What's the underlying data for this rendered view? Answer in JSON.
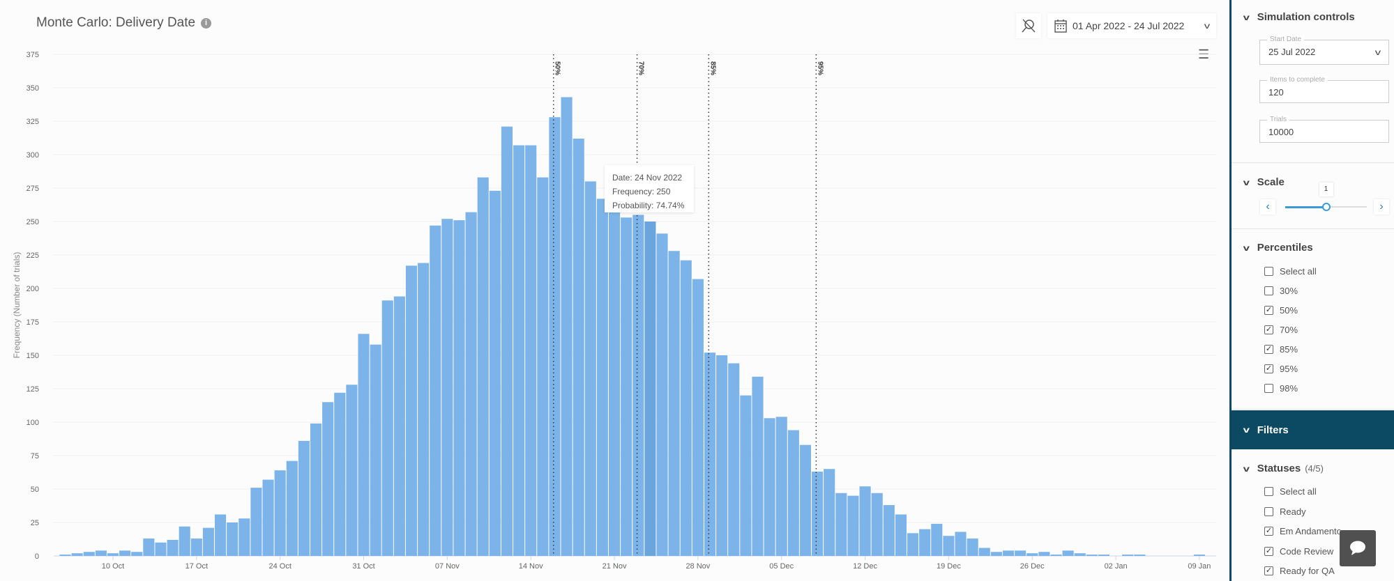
{
  "header": {
    "title": "Monte Carlo: Delivery Date",
    "info_icon": "info-icon",
    "date_range": "01 Apr 2022 - 24 Jul 2022",
    "menu_icon": "hamburger-icon"
  },
  "tooltip": {
    "date": "Date: 24 Nov 2022",
    "frequency": "Frequency: 250",
    "probability": "Probability: 74.74%"
  },
  "chart_data": {
    "type": "bar",
    "title": "Monte Carlo: Delivery Date",
    "xlabel": "",
    "ylabel": "Frequency (Number of trials)",
    "ylim": [
      0,
      375
    ],
    "yticks": [
      "0",
      "25",
      "50",
      "75",
      "100",
      "125",
      "150",
      "175",
      "200",
      "225",
      "250",
      "275",
      "300",
      "325",
      "350",
      "375"
    ],
    "start_date": "2022-10-06",
    "xticks": [
      {
        "day": 4,
        "label": "10 Oct"
      },
      {
        "day": 11,
        "label": "17 Oct"
      },
      {
        "day": 18,
        "label": "24 Oct"
      },
      {
        "day": 25,
        "label": "31 Oct"
      },
      {
        "day": 32,
        "label": "07 Nov"
      },
      {
        "day": 39,
        "label": "14 Nov"
      },
      {
        "day": 46,
        "label": "21 Nov"
      },
      {
        "day": 53,
        "label": "28 Nov"
      },
      {
        "day": 60,
        "label": "05 Dec"
      },
      {
        "day": 67,
        "label": "12 Dec"
      },
      {
        "day": 74,
        "label": "19 Dec"
      },
      {
        "day": 81,
        "label": "26 Dec"
      },
      {
        "day": 88,
        "label": "02 Jan"
      },
      {
        "day": 95,
        "label": "09 Jan"
      }
    ],
    "values": [
      1,
      2,
      3,
      4,
      2,
      4,
      3,
      13,
      10,
      12,
      22,
      13,
      21,
      31,
      25,
      28,
      51,
      57,
      64,
      71,
      86,
      99,
      115,
      122,
      128,
      166,
      158,
      191,
      194,
      217,
      219,
      247,
      252,
      251,
      257,
      283,
      273,
      321,
      307,
      307,
      283,
      328,
      343,
      312,
      280,
      267,
      258,
      253,
      255,
      250,
      241,
      228,
      221,
      207,
      152,
      150,
      144,
      120,
      134,
      103,
      104,
      94,
      83,
      63,
      65,
      47,
      45,
      52,
      47,
      38,
      31,
      17,
      20,
      24,
      15,
      18,
      13,
      6,
      3,
      4,
      4,
      2,
      3,
      1,
      4,
      2,
      1,
      1,
      0,
      1,
      1,
      0,
      0,
      0,
      0,
      1
    ],
    "highlight_day": 49,
    "percentiles": [
      {
        "label": "50%",
        "day": 40.9
      },
      {
        "label": "70%",
        "day": 47.9
      },
      {
        "label": "85%",
        "day": 53.9
      },
      {
        "label": "95%",
        "day": 62.9
      }
    ],
    "bar_color": "#7cb4ea",
    "highlight_color": "#6aa5de"
  },
  "sidebar": {
    "simulation": {
      "title": "Simulation controls",
      "start_date_label": "Start Date",
      "start_date": "25 Jul 2022",
      "items_label": "Items to complete",
      "items": "120",
      "trials_label": "Trials",
      "trials": "10000"
    },
    "scale": {
      "title": "Scale",
      "value": "1",
      "level_fraction": 0.5
    },
    "percentiles": {
      "title": "Percentiles",
      "items": [
        {
          "label": "Select all",
          "checked": false
        },
        {
          "label": "30%",
          "checked": false
        },
        {
          "label": "50%",
          "checked": true
        },
        {
          "label": "70%",
          "checked": true
        },
        {
          "label": "85%",
          "checked": true
        },
        {
          "label": "95%",
          "checked": true
        },
        {
          "label": "98%",
          "checked": false
        }
      ]
    },
    "filters": {
      "title": "Filters"
    },
    "statuses": {
      "title": "Statuses",
      "count": "(4/5)",
      "items": [
        {
          "label": "Select all",
          "checked": false
        },
        {
          "label": "Ready",
          "checked": false
        },
        {
          "label": "Em Andamento",
          "checked": true
        },
        {
          "label": "Code Review",
          "checked": true
        },
        {
          "label": "Ready for QA",
          "checked": true
        }
      ]
    }
  },
  "colors": {
    "accent": "#0b4a62",
    "slider": "#3a9ad9"
  }
}
